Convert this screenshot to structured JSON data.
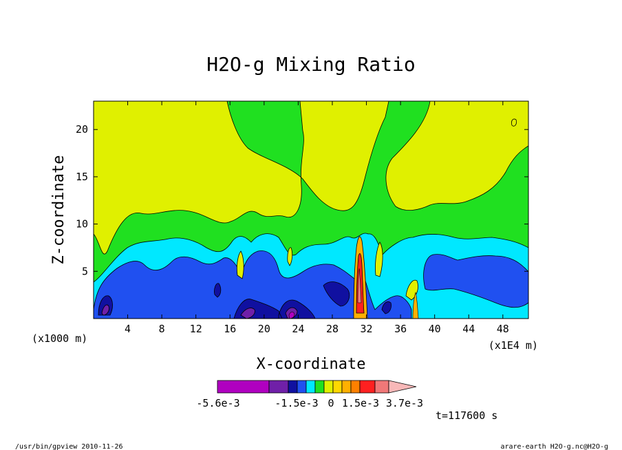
{
  "chart_data": {
    "type": "heatmap",
    "title": "H2O-g Mixing Ratio",
    "xlabel": "X-coordinate",
    "ylabel": "Z-coordinate",
    "x_unit_left": "(x1000 m)",
    "x_unit_right": "(x1E4 m)",
    "x_ticks": [
      "4",
      "8",
      "12",
      "16",
      "20",
      "24",
      "28",
      "32",
      "36",
      "40",
      "44",
      "48"
    ],
    "x_tick_values": [
      4,
      8,
      12,
      16,
      20,
      24,
      28,
      32,
      36,
      40,
      44,
      48
    ],
    "y_ticks": [
      "5",
      "10",
      "15",
      "20"
    ],
    "y_tick_values": [
      5,
      10,
      15,
      20
    ],
    "xlim": [
      0,
      51
    ],
    "ylim": [
      0,
      23
    ],
    "colorbar": {
      "colors": [
        "#b000c0",
        "#7020a8",
        "#1010a0",
        "#2050f0",
        "#00e8ff",
        "#20e020",
        "#e0f000",
        "#ffd800",
        "#ffb000",
        "#ff8000",
        "#ff2020",
        "#f07878",
        "#f8b8b8"
      ],
      "labels": [
        "-5.6e-3",
        "-1.5e-3",
        "0",
        "1.5e-3",
        "3.7e-3"
      ]
    },
    "time_label": "t=117600 s",
    "footer_left": "/usr/bin/gpview   2010-11-26",
    "footer_right": "arare-earth_H2O-g.nc@H2O-g"
  }
}
